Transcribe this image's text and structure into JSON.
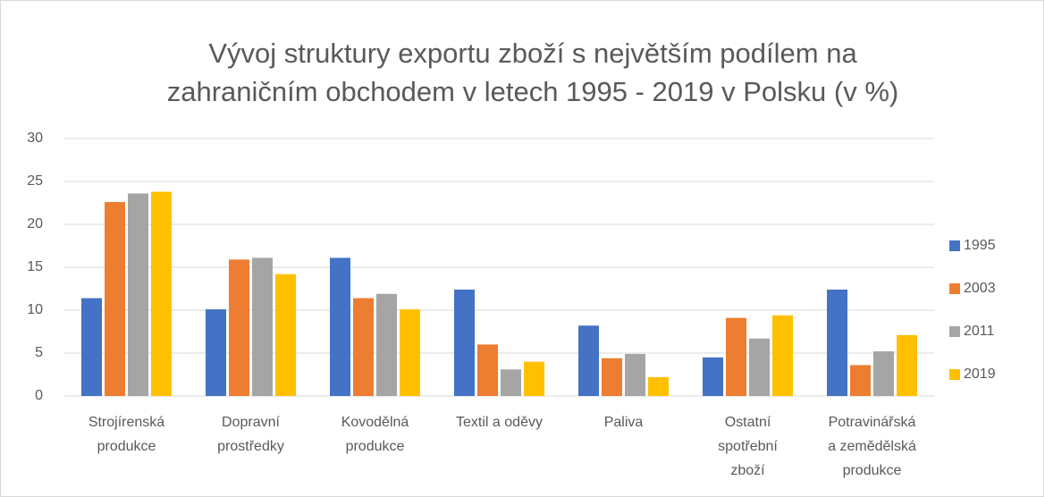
{
  "chart_data": {
    "type": "bar",
    "title": "Vývoj struktury exportu zboží s největším podílem na\nzahraničním obchodem v letech 1995 - 2019  v Polsku (v %)",
    "categories": [
      "Strojírenská\nprodukce",
      "Dopravní\nprostředky",
      "Kovodělná\nprodukce",
      "Textil a oděvy",
      "Paliva",
      "Ostatní\nspotřební\nzboží",
      "Potravinářská\na zemědělská\nprodukce"
    ],
    "series": [
      {
        "name": "1995",
        "color": "#4472c4",
        "values": [
          11.4,
          10.1,
          16.1,
          12.4,
          8.2,
          4.5,
          12.4
        ]
      },
      {
        "name": "2003",
        "color": "#ed7d31",
        "values": [
          22.6,
          15.9,
          11.4,
          6.0,
          4.4,
          9.1,
          3.6
        ]
      },
      {
        "name": "2011",
        "color": "#a5a5a5",
        "values": [
          23.6,
          16.1,
          11.9,
          3.1,
          4.9,
          6.7,
          5.2
        ]
      },
      {
        "name": "2019",
        "color": "#ffc000",
        "values": [
          23.8,
          14.2,
          10.1,
          4.0,
          2.2,
          9.4,
          7.1
        ]
      }
    ],
    "ylim": [
      0,
      30
    ],
    "yticks": [
      0,
      5,
      10,
      15,
      20,
      25,
      30
    ],
    "grid": true,
    "legend": "right"
  }
}
